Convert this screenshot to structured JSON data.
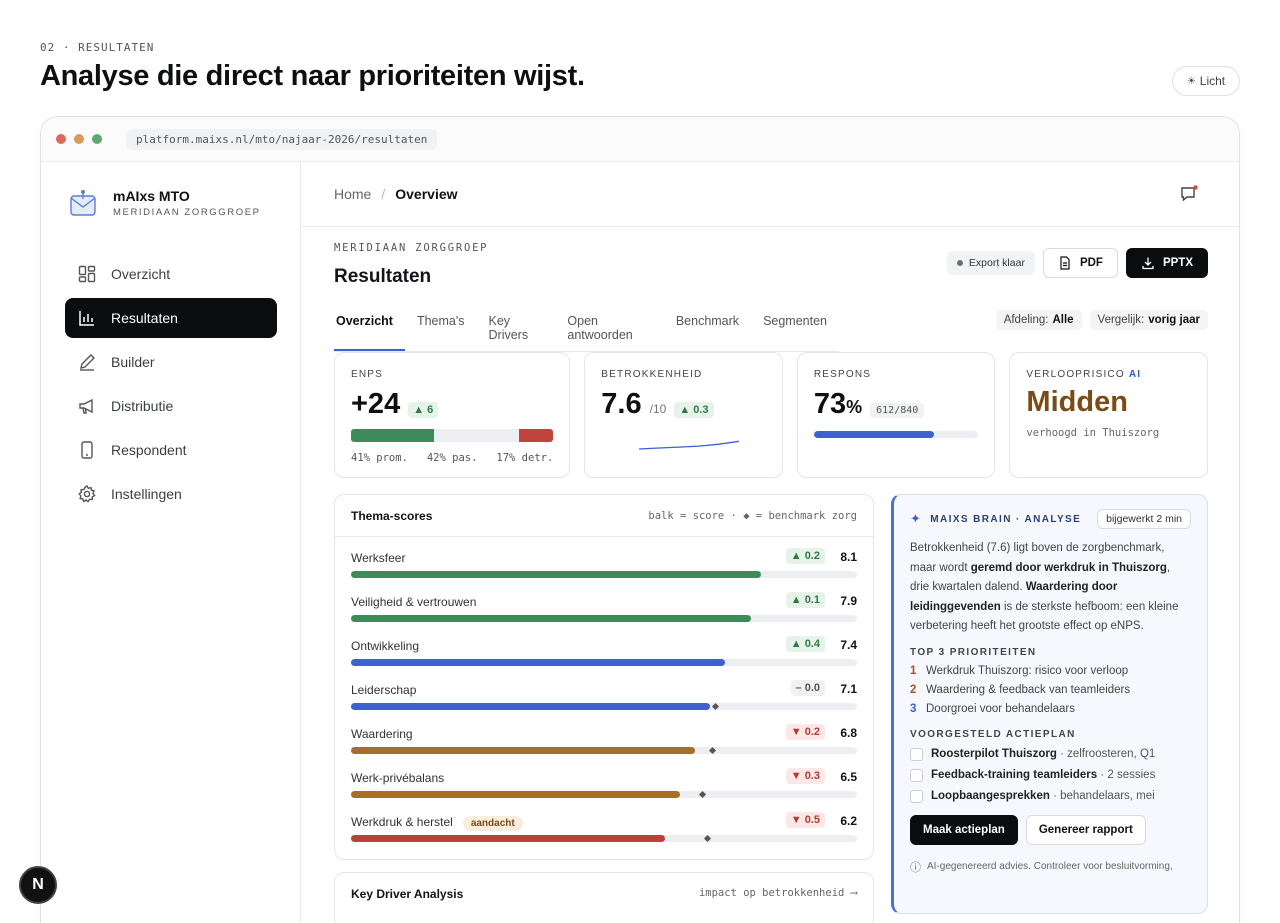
{
  "kicker": "02 · RESULTATEN",
  "headline": "Analyse die direct naar prioriteiten wijst.",
  "theme_toggle": {
    "icon": "sun-icon",
    "label": "Licht"
  },
  "browser": {
    "url": "platform.maixs.nl/mto/najaar-2026/resultaten",
    "dots": [
      "#d9695f",
      "#d59d5b",
      "#5fa872"
    ]
  },
  "brand": {
    "name": "mAIxs MTO",
    "org": "MERIDIAAN ZORGGROEP"
  },
  "nav": [
    {
      "label": "Overzicht",
      "icon": "grid-icon",
      "active": false
    },
    {
      "label": "Resultaten",
      "icon": "bar-chart-icon",
      "active": true
    },
    {
      "label": "Builder",
      "icon": "pen-icon",
      "active": false
    },
    {
      "label": "Distributie",
      "icon": "megaphone-icon",
      "active": false
    },
    {
      "label": "Respondent",
      "icon": "phone-icon",
      "active": false
    },
    {
      "label": "Instellingen",
      "icon": "gear-icon",
      "active": false
    }
  ],
  "breadcrumb": {
    "home": "Home",
    "sep": "/",
    "current": "Overview"
  },
  "page": {
    "org": "MERIDIAAN ZORGGROEP",
    "title": "Resultaten",
    "export_status": "Export klaar",
    "pdf_label": "PDF",
    "pptx_label": "PPTX"
  },
  "tabs": [
    "Overzicht",
    "Thema's",
    "Key Drivers",
    "Open antwoorden",
    "Benchmark",
    "Segmenten"
  ],
  "active_tab": 0,
  "filters": {
    "afdeling_label": "Afdeling:",
    "afdeling_value": "Alle",
    "vergelijk_label": "Vergelijk:",
    "vergelijk_value": "vorig jaar"
  },
  "kpis": {
    "enps": {
      "label": "ENPS",
      "value": "+24",
      "delta": "▲ 6",
      "promoters": 0.41,
      "passives": 0.42,
      "detractors": 0.17,
      "foot": "41% prom.   42% pas.   17% detr."
    },
    "betrokkenheid": {
      "label": "BETROKKENHEID",
      "value": "7.6",
      "unit": "/10",
      "delta": "▲ 0.3",
      "trend": [
        7.2,
        7.25,
        7.3,
        7.35,
        7.45,
        7.6
      ]
    },
    "respons": {
      "label": "RESPONS",
      "value": "73",
      "unit": "%",
      "chip": "612/840",
      "progress": 0.73
    },
    "verloop": {
      "label": "VERLOOPRISICO",
      "ai": "AI",
      "value": "Midden",
      "sub": "verhoogd in Thuiszorg"
    }
  },
  "themes": {
    "title": "Thema-scores",
    "legend": "balk = score · ◆ = benchmark zorg",
    "items": [
      {
        "name": "Werksfeer",
        "delta": "▲ 0.2",
        "trend": "up",
        "score": 8.1,
        "display": "8.1",
        "bench": null,
        "color": "#3f8a5a"
      },
      {
        "name": "Veiligheid & vertrouwen",
        "delta": "▲ 0.1",
        "trend": "up",
        "score": 7.9,
        "display": "7.9",
        "bench": null,
        "color": "#3f8a5a"
      },
      {
        "name": "Ontwikkeling",
        "delta": "▲ 0.4",
        "trend": "up",
        "score": 7.4,
        "display": "7.4",
        "bench": null,
        "color": "#3f60d0"
      },
      {
        "name": "Leiderschap",
        "delta": "– 0.0",
        "trend": "flat",
        "score": 7.1,
        "display": "7.1",
        "bench": 7.15,
        "color": "#3f60d0"
      },
      {
        "name": "Waardering",
        "delta": "▼ 0.2",
        "trend": "down",
        "score": 6.8,
        "display": "6.8",
        "bench": 7.1,
        "color": "#a66e2a"
      },
      {
        "name": "Werk-privébalans",
        "delta": "▼ 0.3",
        "trend": "down",
        "score": 6.5,
        "display": "6.5",
        "bench": 6.9,
        "color": "#a66e2a"
      },
      {
        "name": "Werkdruk & herstel",
        "tag": "aandacht",
        "delta": "▼ 0.5",
        "trend": "down",
        "score": 6.2,
        "display": "6.2",
        "bench": 7.0,
        "color": "#b7423c"
      }
    ]
  },
  "kda": {
    "title": "Key Driver Analysis",
    "legend": "impact op betrokkenheid ⟶"
  },
  "brain": {
    "title": "MAIXS BRAIN · ANALYSE",
    "updated": "bijgewerkt 2 min",
    "text_1": "Betrokkenheid (7.6) ligt boven de zorgbenchmark, maar wordt ",
    "text_b1": "geremd door werkdruk in Thuiszorg",
    "text_2": ", drie kwartalen dalend. ",
    "text_b2": "Waardering door leidinggevenden",
    "text_3": " is de sterkste hefboom: een kleine verbetering heeft het grootste effect op eNPS.",
    "prio_title": "TOP 3 PRIORITEITEN",
    "priorities": [
      {
        "n": "1",
        "text": "Werkdruk Thuiszorg: risico voor verloop",
        "color": "#b7423c"
      },
      {
        "n": "2",
        "text": "Waardering & feedback van teamleiders",
        "color": "#a6542a"
      },
      {
        "n": "3",
        "text": "Doorgroei voor behandelaars",
        "color": "#3f60d0"
      }
    ],
    "plan_title": "VOORGESTELD ACTIEPLAN",
    "actions": [
      {
        "bold": "Roosterpilot Thuiszorg",
        "rest": " · zelfroosteren, Q1"
      },
      {
        "bold": "Feedback-training teamleiders",
        "rest": " · 2 sessies"
      },
      {
        "bold": "Loopbaangesprekken",
        "rest": " · behandelaars, mei"
      }
    ],
    "btn_primary": "Maak actieplan",
    "btn_secondary": "Genereer rapport",
    "note": "AI-gegenereerd advies. Controleer voor besluitvorming,"
  },
  "corner_badge": "N"
}
